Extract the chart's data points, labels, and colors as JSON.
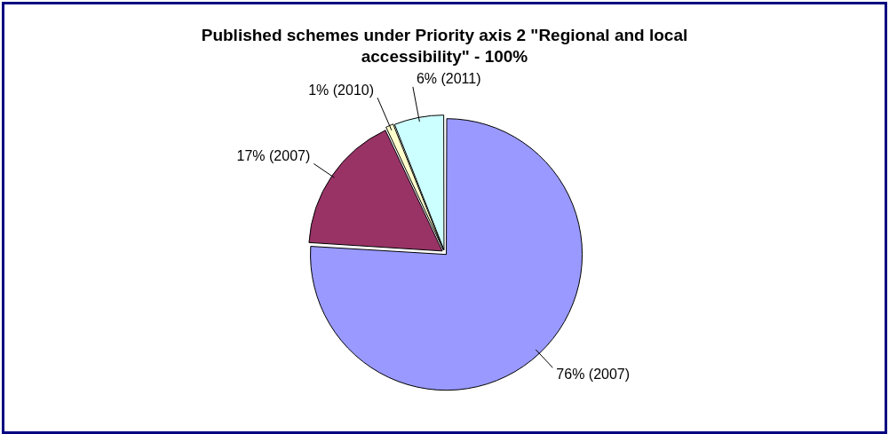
{
  "chart_data": {
    "type": "pie",
    "title": "Published schemes under Priority axis 2 \"Regional and local accessibility\" - 100%",
    "categories": [
      "76% (2007)",
      "17% (2007)",
      "1% (2010)",
      "6% (2011)"
    ],
    "values": [
      76,
      17,
      1,
      6
    ],
    "colors": [
      "#9999ff",
      "#993366",
      "#ffffcc",
      "#ccffff"
    ],
    "legend": false
  }
}
